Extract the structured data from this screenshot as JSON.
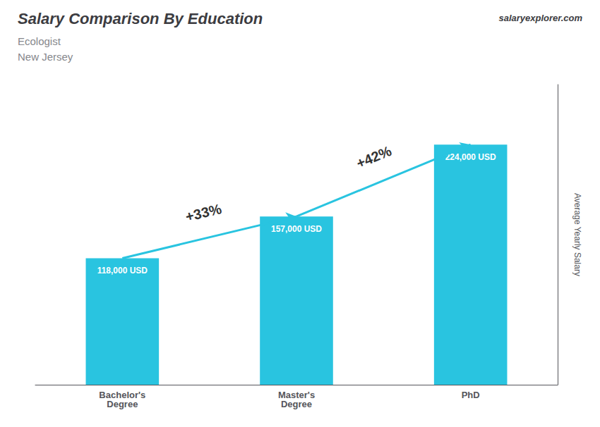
{
  "chart_data": {
    "type": "bar",
    "title": "Salary Comparison By Education",
    "subtitle": [
      "Ecologist",
      "New Jersey"
    ],
    "source": "salaryexplorer.com",
    "ylabel": "Average Yearly Salary",
    "categories": [
      "Bachelor's\nDegree",
      "Master's\nDegree",
      "PhD"
    ],
    "values": [
      118000,
      157000,
      224000
    ],
    "value_labels": [
      "118,000 USD",
      "157,000 USD",
      "224,000 USD"
    ],
    "data_labels": true,
    "color": "#29C4E0",
    "ylim": [
      0,
      280000
    ],
    "yticks": [],
    "tick_labels": "x",
    "grid": false,
    "annotations": [
      "+33%",
      "+42%"
    ]
  }
}
